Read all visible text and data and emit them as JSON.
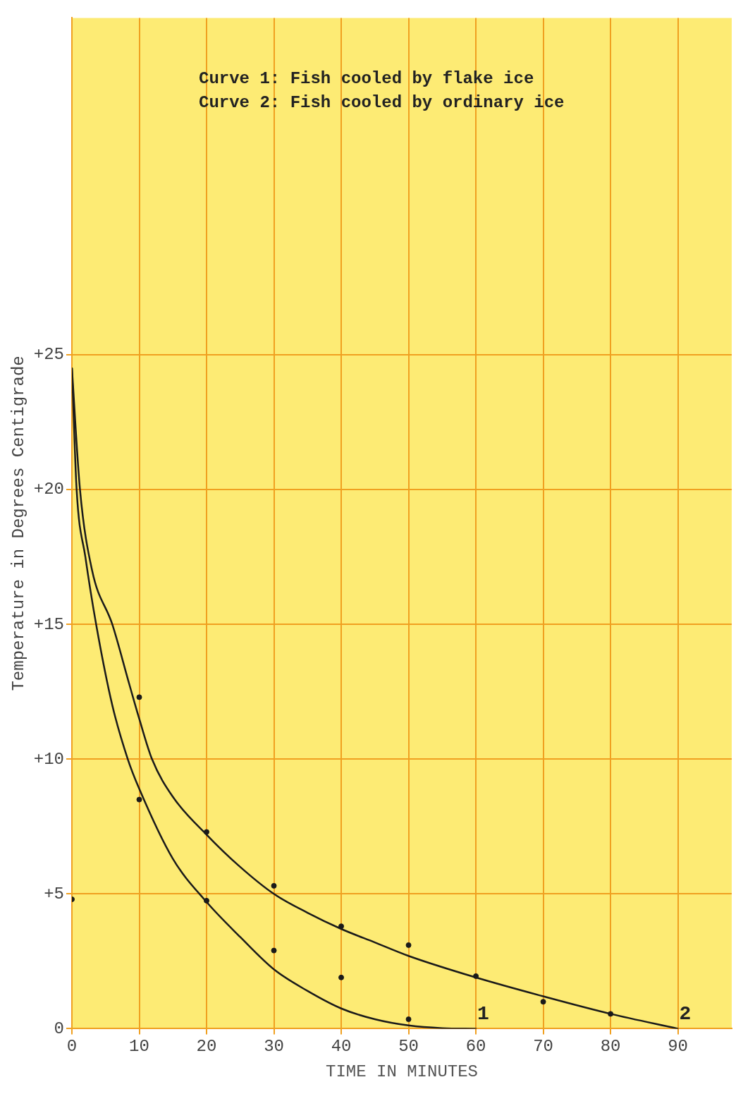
{
  "chart_data": {
    "type": "line",
    "xlabel": "TIME IN MINUTES",
    "ylabel": "Temperature in Degrees Centigrade",
    "xlim": [
      0,
      98
    ],
    "ylim": [
      0,
      37.5
    ],
    "xticks": [
      0,
      10,
      20,
      30,
      40,
      50,
      60,
      70,
      80,
      90
    ],
    "yticks": [
      {
        "value": 0,
        "label": "0"
      },
      {
        "value": 5,
        "label": "+5"
      },
      {
        "value": 10,
        "label": "+10"
      },
      {
        "value": 15,
        "label": "+15"
      },
      {
        "value": 20,
        "label": "+20"
      },
      {
        "value": 25,
        "label": "+25"
      }
    ],
    "grid": true,
    "legend": false,
    "marker": "none",
    "line_style": "solid",
    "annotations": [
      "Curve 1: Fish cooled by flake ice",
      "Curve 2: Fish cooled by ordinary ice",
      {
        "text": "1",
        "x": 60,
        "y": 0
      },
      {
        "text": "2",
        "x": 90,
        "y": 0
      }
    ],
    "series": [
      {
        "color": "#1a1a1a",
        "x": [
          0,
          0.7,
          2,
          3.6,
          6,
          8.3,
          10,
          15,
          20,
          25,
          30,
          35,
          40,
          45,
          50,
          55,
          60
        ],
        "values": [
          24.5,
          20,
          17.5,
          15,
          12,
          10,
          8.9,
          6.3,
          4.7,
          3.4,
          2.2,
          1.4,
          0.75,
          0.35,
          0.12,
          0.02,
          0
        ]
      },
      {
        "color": "#1a1a1a",
        "x": [
          0,
          1.2,
          3,
          6,
          8.5,
          10,
          11.9,
          15,
          20,
          25,
          30,
          35,
          40,
          45,
          50,
          60,
          70,
          80,
          90
        ],
        "values": [
          24.5,
          20,
          17,
          15,
          12.8,
          11.5,
          10,
          8.6,
          7.2,
          6,
          5,
          4.3,
          3.7,
          3.2,
          2.7,
          1.9,
          1.2,
          0.55,
          0
        ]
      },
      {
        "type": "scatter",
        "marker": "circle",
        "color": "#1a1a1a",
        "x": [
          0,
          10,
          10,
          20,
          20,
          30,
          30,
          40,
          40,
          50,
          50,
          60,
          70,
          80
        ],
        "values": [
          4.8,
          12.3,
          8.5,
          7.3,
          4.75,
          5.3,
          2.9,
          3.8,
          1.9,
          3.1,
          0.35,
          1.95,
          1,
          0.55
        ]
      }
    ]
  }
}
